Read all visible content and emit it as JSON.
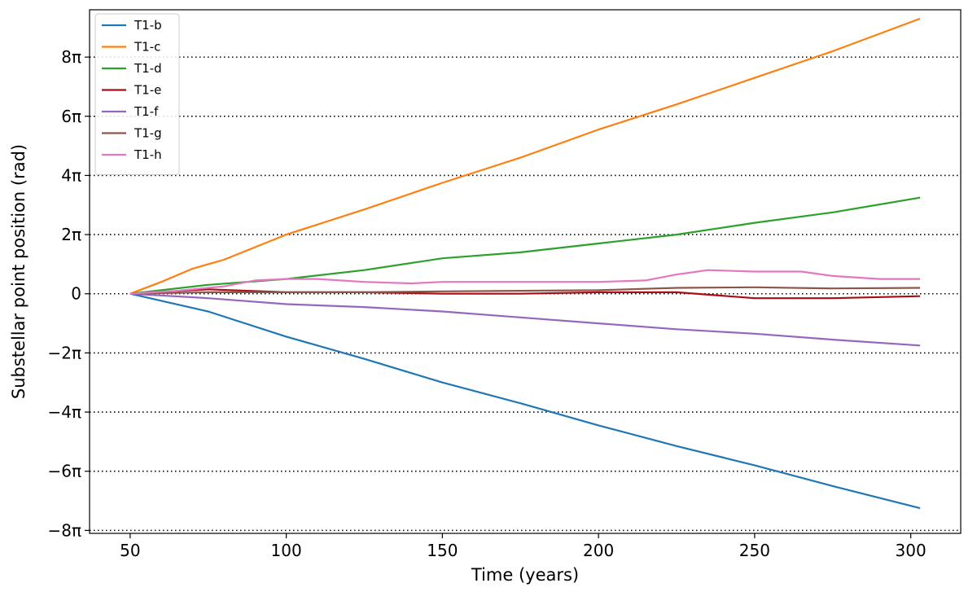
{
  "chart_data": {
    "type": "line",
    "xlabel": "Time (years)",
    "ylabel": "Substellar point position (rad)",
    "xlim": [
      37,
      316
    ],
    "ylim": [
      -8.1,
      9.6
    ],
    "x_ticks": [
      50,
      100,
      150,
      200,
      250,
      300
    ],
    "x_tick_labels": [
      "50",
      "100",
      "150",
      "200",
      "250",
      "300"
    ],
    "y_ticks": [
      -8,
      -6,
      -4,
      -2,
      0,
      2,
      4,
      6,
      8
    ],
    "y_tick_labels": [
      "−8π",
      "−6π",
      "−4π",
      "−2π",
      "0",
      "2π",
      "4π",
      "6π",
      "8π"
    ],
    "y_unit": "multiples of π rad",
    "grid": "horizontal dotted at y ticks",
    "legend_position": "top-left",
    "series": [
      {
        "name": "T1-b",
        "color": "#1f77b4",
        "x": [
          50,
          75,
          100,
          125,
          150,
          175,
          200,
          225,
          250,
          275,
          303
        ],
        "y": [
          0,
          -0.6,
          -1.45,
          -2.2,
          -3.0,
          -3.7,
          -4.45,
          -5.15,
          -5.8,
          -6.5,
          -7.25
        ]
      },
      {
        "name": "T1-c",
        "color": "#ff7f0e",
        "x": [
          50,
          60,
          70,
          80,
          100,
          125,
          150,
          175,
          200,
          225,
          250,
          275,
          303
        ],
        "y": [
          0,
          0.4,
          0.85,
          1.15,
          2.0,
          2.85,
          3.75,
          4.6,
          5.55,
          6.4,
          7.3,
          8.2,
          9.3
        ]
      },
      {
        "name": "T1-d",
        "color": "#2ca02c",
        "x": [
          50,
          75,
          100,
          125,
          150,
          175,
          200,
          225,
          250,
          275,
          303
        ],
        "y": [
          0,
          0.3,
          0.5,
          0.8,
          1.2,
          1.4,
          1.7,
          2.0,
          2.4,
          2.75,
          3.25
        ]
      },
      {
        "name": "T1-e",
        "color": "#a50f15",
        "x": [
          50,
          75,
          100,
          125,
          150,
          175,
          200,
          225,
          250,
          275,
          303
        ],
        "y": [
          0,
          0.15,
          0.05,
          0.05,
          0.0,
          0.0,
          0.05,
          0.05,
          -0.15,
          -0.15,
          -0.08
        ]
      },
      {
        "name": "T1-f",
        "color": "#9467bd",
        "x": [
          50,
          75,
          100,
          125,
          150,
          175,
          200,
          225,
          250,
          275,
          303
        ],
        "y": [
          0,
          -0.15,
          -0.35,
          -0.45,
          -0.6,
          -0.8,
          -1.0,
          -1.2,
          -1.35,
          -1.55,
          -1.75
        ]
      },
      {
        "name": "T1-g",
        "color": "#8c564b",
        "x": [
          50,
          75,
          100,
          125,
          150,
          175,
          200,
          225,
          250,
          275,
          303
        ],
        "y": [
          0,
          0.05,
          0.05,
          0.05,
          0.08,
          0.1,
          0.12,
          0.2,
          0.22,
          0.18,
          0.2
        ]
      },
      {
        "name": "T1-h",
        "color": "#e377c2",
        "x": [
          50,
          65,
          80,
          90,
          100,
          110,
          125,
          140,
          150,
          175,
          200,
          215,
          225,
          235,
          250,
          265,
          275,
          290,
          303
        ],
        "y": [
          0,
          0.1,
          0.25,
          0.45,
          0.5,
          0.5,
          0.4,
          0.35,
          0.4,
          0.4,
          0.4,
          0.45,
          0.65,
          0.8,
          0.75,
          0.75,
          0.6,
          0.5,
          0.5
        ]
      }
    ]
  }
}
